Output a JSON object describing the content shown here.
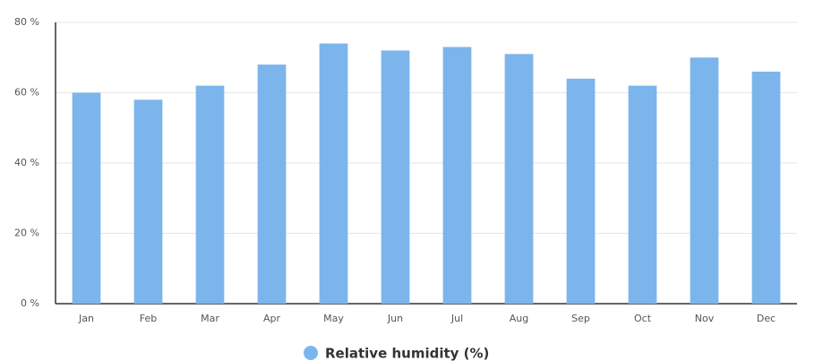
{
  "chart_data": {
    "type": "bar",
    "categories": [
      "Jan",
      "Feb",
      "Mar",
      "Apr",
      "May",
      "Jun",
      "Jul",
      "Aug",
      "Sep",
      "Oct",
      "Nov",
      "Dec"
    ],
    "series": [
      {
        "name": "Relative humidity (%)",
        "color": "#7cb5ec",
        "values": [
          60,
          58,
          62,
          68,
          74,
          72,
          73,
          71,
          64,
          62,
          70,
          66
        ]
      }
    ],
    "ylim": [
      0,
      80
    ],
    "yticks": [
      {
        "value": 0,
        "label": "0 %"
      },
      {
        "value": 20,
        "label": "20 %"
      },
      {
        "value": 40,
        "label": "40 %"
      },
      {
        "value": 60,
        "label": "60 %"
      },
      {
        "value": 80,
        "label": "80 %"
      }
    ],
    "grid": true,
    "legend": "bottom"
  }
}
